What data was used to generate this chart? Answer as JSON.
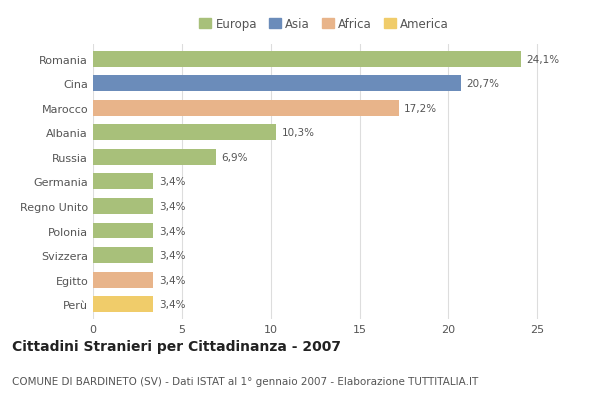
{
  "categories": [
    "Romania",
    "Cina",
    "Marocco",
    "Albania",
    "Russia",
    "Germania",
    "Regno Unito",
    "Polonia",
    "Svizzera",
    "Egitto",
    "Perù"
  ],
  "values": [
    24.1,
    20.7,
    17.2,
    10.3,
    6.9,
    3.4,
    3.4,
    3.4,
    3.4,
    3.4,
    3.4
  ],
  "labels": [
    "24,1%",
    "20,7%",
    "17,2%",
    "10,3%",
    "6,9%",
    "3,4%",
    "3,4%",
    "3,4%",
    "3,4%",
    "3,4%",
    "3,4%"
  ],
  "continents": [
    "Europa",
    "Asia",
    "Africa",
    "Europa",
    "Europa",
    "Europa",
    "Europa",
    "Europa",
    "Europa",
    "Africa",
    "America"
  ],
  "colors": {
    "Europa": "#a8c07a",
    "Asia": "#6b8cba",
    "Africa": "#e8b48a",
    "America": "#f0cc6a"
  },
  "legend_order": [
    "Europa",
    "Asia",
    "Africa",
    "America"
  ],
  "legend_colors": [
    "#a8c07a",
    "#6b8cba",
    "#e8b48a",
    "#f0cc6a"
  ],
  "title": "Cittadini Stranieri per Cittadinanza - 2007",
  "subtitle": "COMUNE DI BARDINETO (SV) - Dati ISTAT al 1° gennaio 2007 - Elaborazione TUTTITALIA.IT",
  "xlim": [
    0,
    26
  ],
  "xticks": [
    0,
    5,
    10,
    15,
    20,
    25
  ],
  "background_color": "#ffffff",
  "bar_height": 0.65,
  "grid_color": "#dddddd",
  "text_color": "#555555",
  "title_fontsize": 10,
  "subtitle_fontsize": 7.5,
  "label_fontsize": 7.5,
  "tick_fontsize": 8,
  "legend_fontsize": 8.5
}
